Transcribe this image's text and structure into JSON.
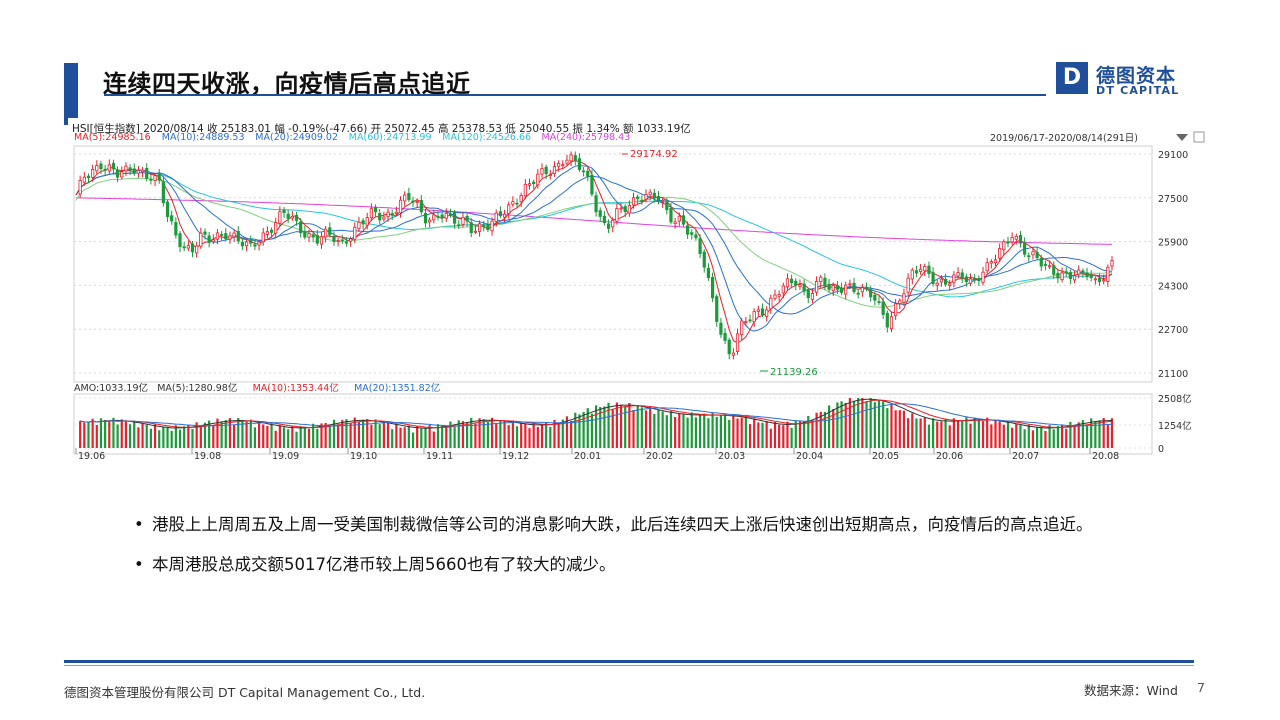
{
  "header": {
    "title": "连续四天收涨，向疫情后高点追近",
    "logo_letter": "D",
    "logo_cn": "德图资本",
    "logo_en": "DT CAPITAL"
  },
  "colors": {
    "brand": "#1f4e9a",
    "up": "#e8202a",
    "down": "#1a9a3a"
  },
  "bullets": [
    "港股上上周周五及上周一受美国制裁微信等公司的消息影响大跌，此后连续四天上涨后快速创出短期高点，向疫情后的高点追近。",
    "本周港股总成交额5017亿港币较上周5660也有了较大的减少。"
  ],
  "footer": {
    "company": "德图资本管理股份有限公司  DT Capital  Management  Co., Ltd.",
    "source": "数据来源：Wind",
    "page": "7"
  },
  "chart_data": {
    "type": "candlestick",
    "info_line": {
      "code": "HSI[恒生指数]",
      "date": "2020/08/14",
      "close": "收 25183.01",
      "change": "幅 -0.19%(-47.66)",
      "open": "开 25072.45",
      "high": "高 25378.53",
      "low": "低 25040.55",
      "amplitude": "振 1.34%",
      "amount": "额 1033.19亿"
    },
    "ma_legend": [
      {
        "label": "MA(5):24985.16",
        "color": "#e8202a"
      },
      {
        "label": "MA(10):24889.53",
        "color": "#2b6fd6"
      },
      {
        "label": "MA(20):24909.02",
        "color": "#2b6fd6"
      },
      {
        "label": "MA(60):24713.99",
        "color": "#27c4e0"
      },
      {
        "label": "MA(120):24526.66",
        "color": "#27c4e0"
      },
      {
        "label": "MA(240):25798.43",
        "color": "#e040e0"
      }
    ],
    "range_label": "2019/06/17-2020/08/14(291日)",
    "price_axis": {
      "min": 21100,
      "max": 29100,
      "ticks": [
        "29100",
        "27500",
        "25900",
        "24300",
        "22700",
        "21100"
      ]
    },
    "annotations": {
      "high": "29174.92",
      "low": "21139.26"
    },
    "volume_legend": [
      {
        "label": "AMO:1033.19亿",
        "color": "#333333"
      },
      {
        "label": "MA(5):1280.98亿",
        "color": "#333333"
      },
      {
        "label": "MA(10):1353.44亿",
        "color": "#e8202a"
      },
      {
        "label": "MA(20):1351.82亿",
        "color": "#2b6fd6"
      }
    ],
    "volume_axis": {
      "ticks": [
        "2508亿",
        "1254亿",
        "0"
      ]
    },
    "x_labels": [
      "19.06",
      "19.08",
      "19.09",
      "19.10",
      "19.11",
      "19.12",
      "20.01",
      "20.02",
      "20.03",
      "20.04",
      "20.05",
      "20.06",
      "20.07",
      "20.08"
    ],
    "price_path": [
      [
        0,
        27500
      ],
      [
        4,
        28200
      ],
      [
        8,
        28500
      ],
      [
        12,
        28800
      ],
      [
        16,
        28600
      ],
      [
        20,
        28300
      ],
      [
        24,
        28400
      ],
      [
        28,
        28600
      ],
      [
        32,
        28500
      ],
      [
        36,
        28300
      ],
      [
        40,
        28000
      ],
      [
        44,
        26800
      ],
      [
        48,
        26200
      ],
      [
        52,
        25800
      ],
      [
        56,
        25600
      ],
      [
        60,
        26000
      ],
      [
        64,
        25900
      ],
      [
        68,
        26100
      ],
      [
        72,
        26300
      ],
      [
        76,
        26100
      ],
      [
        80,
        25800
      ],
      [
        84,
        25600
      ],
      [
        88,
        26000
      ],
      [
        92,
        26300
      ],
      [
        96,
        26600
      ],
      [
        100,
        26900
      ],
      [
        104,
        26700
      ],
      [
        108,
        26400
      ],
      [
        112,
        26200
      ],
      [
        116,
        26000
      ],
      [
        120,
        26100
      ],
      [
        124,
        26000
      ],
      [
        128,
        25800
      ],
      [
        132,
        26200
      ],
      [
        136,
        26500
      ],
      [
        140,
        26700
      ],
      [
        144,
        26900
      ],
      [
        148,
        26800
      ],
      [
        152,
        27000
      ],
      [
        156,
        27300
      ],
      [
        160,
        27500
      ],
      [
        164,
        27200
      ],
      [
        168,
        26800
      ],
      [
        172,
        26800
      ],
      [
        176,
        27000
      ],
      [
        180,
        26700
      ],
      [
        184,
        26500
      ],
      [
        188,
        26700
      ],
      [
        192,
        26400
      ],
      [
        196,
        26500
      ],
      [
        200,
        26400
      ],
      [
        204,
        26800
      ],
      [
        208,
        27100
      ],
      [
        212,
        27500
      ],
      [
        216,
        27800
      ],
      [
        220,
        28000
      ],
      [
        224,
        28300
      ],
      [
        228,
        28500
      ],
      [
        232,
        28700
      ],
      [
        236,
        29000
      ],
      [
        240,
        28800
      ],
      [
        244,
        28500
      ],
      [
        248,
        28000
      ],
      [
        252,
        27000
      ],
      [
        256,
        26400
      ],
      [
        260,
        26800
      ],
      [
        264,
        27000
      ],
      [
        268,
        27300
      ],
      [
        272,
        27700
      ],
      [
        276,
        27600
      ],
      [
        280,
        27500
      ],
      [
        284,
        27000
      ],
      [
        288,
        26700
      ],
      [
        292,
        26800
      ],
      [
        296,
        26300
      ],
      [
        300,
        25700
      ],
      [
        304,
        24800
      ],
      [
        308,
        23500
      ],
      [
        312,
        22500
      ],
      [
        316,
        21700
      ],
      [
        320,
        22600
      ],
      [
        324,
        23000
      ],
      [
        328,
        23300
      ],
      [
        332,
        23500
      ],
      [
        336,
        23800
      ],
      [
        340,
        24100
      ],
      [
        344,
        24300
      ],
      [
        348,
        24500
      ],
      [
        352,
        24000
      ],
      [
        356,
        24200
      ],
      [
        360,
        24500
      ],
      [
        364,
        24000
      ],
      [
        368,
        24200
      ],
      [
        372,
        24400
      ],
      [
        376,
        24200
      ],
      [
        380,
        24000
      ],
      [
        384,
        23900
      ],
      [
        388,
        23500
      ],
      [
        392,
        23000
      ],
      [
        396,
        23600
      ],
      [
        400,
        24100
      ],
      [
        404,
        24700
      ],
      [
        408,
        25000
      ],
      [
        412,
        24800
      ],
      [
        416,
        24400
      ],
      [
        420,
        24300
      ],
      [
        424,
        24500
      ],
      [
        428,
        24700
      ],
      [
        432,
        24500
      ],
      [
        436,
        24700
      ],
      [
        440,
        24900
      ],
      [
        444,
        25300
      ],
      [
        448,
        25800
      ],
      [
        452,
        26300
      ],
      [
        456,
        25800
      ],
      [
        460,
        25300
      ],
      [
        464,
        25200
      ],
      [
        468,
        25000
      ],
      [
        472,
        24900
      ],
      [
        476,
        24700
      ],
      [
        480,
        24600
      ],
      [
        484,
        24600
      ],
      [
        488,
        24800
      ],
      [
        492,
        24500
      ],
      [
        496,
        24700
      ],
      [
        500,
        25000
      ]
    ]
  }
}
